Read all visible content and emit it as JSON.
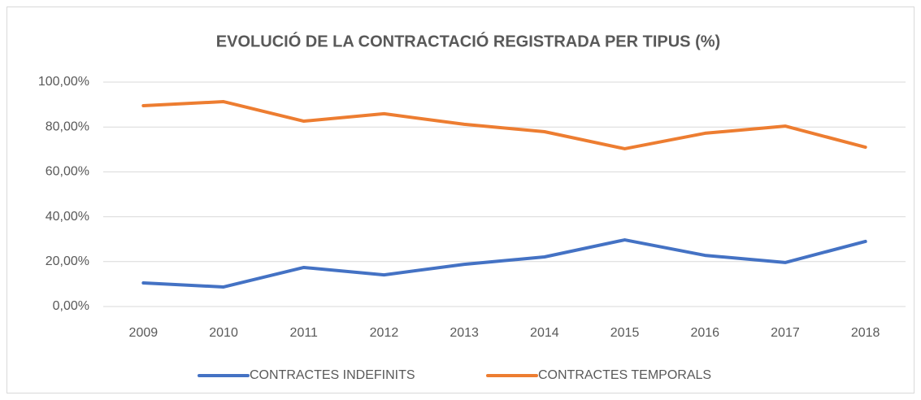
{
  "chart_data": {
    "type": "line",
    "title": "EVOLUCIÓ DE LA CONTRACTACIÓ REGISTRADA PER TIPUS (%)",
    "categories": [
      "2009",
      "2010",
      "2011",
      "2012",
      "2013",
      "2014",
      "2015",
      "2016",
      "2017",
      "2018"
    ],
    "series": [
      {
        "name": "CONTRACTES INDEFINITS",
        "color": "#4472c4",
        "values": [
          10.5,
          8.7,
          17.4,
          14.1,
          18.8,
          22.1,
          29.7,
          22.8,
          19.6,
          29.0
        ]
      },
      {
        "name": "CONTRACTES TEMPORALS",
        "color": "#ed7d31",
        "values": [
          89.5,
          91.3,
          82.6,
          85.9,
          81.2,
          77.9,
          70.3,
          77.2,
          80.4,
          71.0
        ]
      }
    ],
    "ylim": [
      0,
      100
    ],
    "yticks": [
      {
        "value": 0,
        "label": "0,00%"
      },
      {
        "value": 20,
        "label": "20,00%"
      },
      {
        "value": 40,
        "label": "40,00%"
      },
      {
        "value": 60,
        "label": "60,00%"
      },
      {
        "value": 80,
        "label": "80,00%"
      },
      {
        "value": 100,
        "label": "100,00%"
      }
    ],
    "grid": true,
    "legend": "bottom"
  }
}
